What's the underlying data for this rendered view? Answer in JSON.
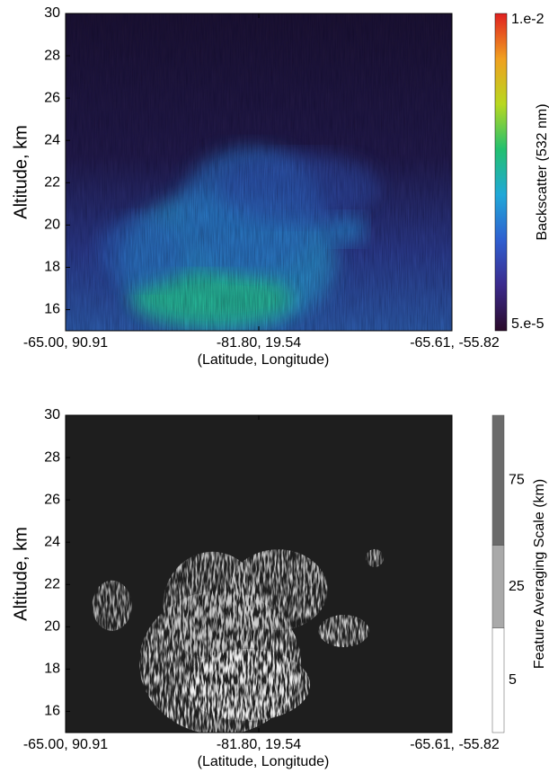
{
  "chart_data": [
    {
      "type": "curtain",
      "ylabel": "Altitude, km",
      "xlabel": "(Latitude, Longitude)",
      "categories": [
        "-65.00, 90.91",
        "-81.80, 19.54",
        "-65.61, -55.82"
      ],
      "ylim": [
        15,
        30
      ],
      "yticks": [
        16,
        18,
        20,
        22,
        24,
        26,
        28,
        30
      ],
      "colorbar": {
        "label": "Backscatter (532 nm)",
        "scale": "log",
        "lim": [
          5e-05,
          0.01
        ],
        "ticks": [
          {
            "value": 0.01,
            "label": "1.e-2"
          },
          {
            "value": 5e-05,
            "label": "5.e-5"
          }
        ],
        "colors": [
          "#2a0a2a",
          "#3b2a8c",
          "#2f5fd0",
          "#20a8d8",
          "#22c070",
          "#b8d820",
          "#f0a020",
          "#e02020"
        ]
      }
    },
    {
      "type": "curtain",
      "ylabel": "Altitude, km",
      "xlabel": "(Latitude, Longitude)",
      "categories": [
        "-65.00, 90.91",
        "-81.80, 19.54",
        "-65.61, -55.82"
      ],
      "ylim": [
        15,
        30
      ],
      "yticks": [
        16,
        18,
        20,
        22,
        24,
        26,
        28,
        30
      ],
      "colorbar": {
        "label": "Feature Averaging Scale (km)",
        "scale": "categorical",
        "ticks": [
          5,
          25,
          75
        ],
        "colors": [
          "#ffffff",
          "#a9a9a9",
          "#6b6b6b"
        ]
      }
    }
  ]
}
